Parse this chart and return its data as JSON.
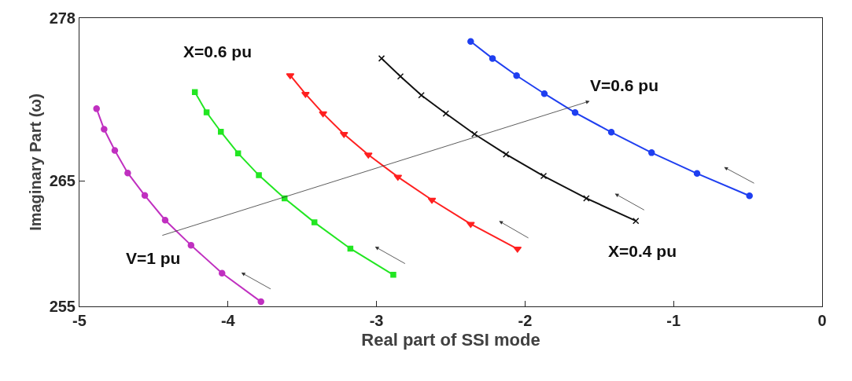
{
  "chart_data": {
    "type": "line",
    "xlabel": "Real part of SSI mode",
    "ylabel": "Imaginary Part (ω)",
    "annotations": [
      "X=0.6 pu",
      "V=0.6 pu",
      "V=1 pu",
      "X=0.4 pu"
    ],
    "xlim": [
      -5,
      0
    ],
    "xticks": [
      -5,
      -4,
      -3,
      -2,
      -1,
      0
    ],
    "ylim": [
      255,
      278
    ],
    "yticks": [
      255,
      265,
      278
    ],
    "line_style": "solid",
    "series": [
      {
        "color": "#c030c0",
        "marker": "circle",
        "x": [
          -4.885,
          -4.834,
          -4.762,
          -4.675,
          -4.56,
          -4.423,
          -4.249,
          -4.04,
          -3.778
        ],
        "values": [
          270.77,
          269.13,
          267.44,
          265.64,
          263.85,
          261.88,
          259.88,
          257.65,
          255.37
        ]
      },
      {
        "color": "#22e622",
        "marker": "square",
        "x": [
          -4.223,
          -4.144,
          -4.048,
          -3.932,
          -3.792,
          -3.619,
          -3.418,
          -3.176,
          -2.887
        ],
        "values": [
          272.09,
          270.48,
          268.93,
          267.21,
          265.46,
          263.62,
          261.7,
          259.61,
          257.52
        ]
      },
      {
        "color": "#ff2020",
        "marker": "triangle",
        "x": [
          -3.581,
          -3.478,
          -3.36,
          -3.219,
          -3.055,
          -2.856,
          -2.627,
          -2.366,
          -2.051
        ],
        "values": [
          273.43,
          271.94,
          270.39,
          268.74,
          267.09,
          265.33,
          263.49,
          261.57,
          259.59
        ]
      },
      {
        "color": "#111111",
        "marker": "cross",
        "x": [
          -2.966,
          -2.839,
          -2.698,
          -2.533,
          -2.34,
          -2.128,
          -1.875,
          -1.587,
          -1.254
        ],
        "values": [
          274.78,
          273.35,
          271.84,
          270.39,
          268.74,
          267.13,
          265.4,
          263.62,
          261.82
        ]
      },
      {
        "color": "#1f3ff0",
        "marker": "circle",
        "x": [
          -2.366,
          -2.219,
          -2.057,
          -1.87,
          -1.663,
          -1.419,
          -1.148,
          -0.842,
          -0.489
        ],
        "values": [
          276.14,
          274.78,
          273.41,
          271.97,
          270.46,
          268.89,
          267.26,
          265.6,
          263.82
        ]
      }
    ]
  }
}
